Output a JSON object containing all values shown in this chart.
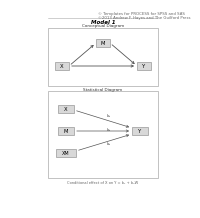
{
  "title_line1": "© Templates for PROCESS for SPSS and SAS",
  "title_line2": "©2013 Andrew F. Hayes and The Guilford Press",
  "model_label": "Model 1",
  "conceptual_label": "Conceptual Diagram",
  "statistical_label": "Statistical Diagram",
  "conditional_text": "Conditional effect of X on Y = b₁ + b₃W",
  "bg_color": "#ffffff"
}
